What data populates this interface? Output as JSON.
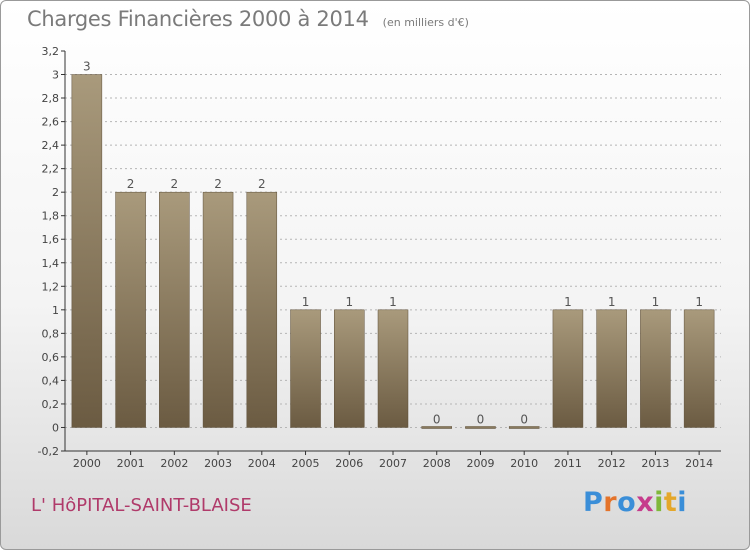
{
  "title": "Charges Financières 2000 à 2014",
  "unit": "(en milliers d'€)",
  "location": "L' HôPITAL-SAINT-BLAISE",
  "logo": {
    "letters": [
      "P",
      "r",
      "o",
      "x",
      "i",
      "t",
      "i"
    ],
    "colors": [
      "#3a8ed8",
      "#e4732a",
      "#3a8ed8",
      "#c63b8c",
      "#7fb83a",
      "#e4a72a",
      "#3a8ed8"
    ]
  },
  "colors": {
    "bar_top": "#a99a7c",
    "bar_bottom": "#6b5b42",
    "grid": "#b5b5b5",
    "axis": "#333333"
  },
  "chart_data": {
    "type": "bar",
    "title": "Charges Financières 2000 à 2014",
    "subtitle": "(en milliers d'€)",
    "xlabel": "",
    "ylabel": "",
    "categories": [
      "2000",
      "2001",
      "2002",
      "2003",
      "2004",
      "2005",
      "2006",
      "2007",
      "2008",
      "2009",
      "2010",
      "2011",
      "2012",
      "2013",
      "2014"
    ],
    "values": [
      3,
      2,
      2,
      2,
      2,
      1,
      1,
      1,
      0,
      0,
      0,
      1,
      1,
      1,
      1
    ],
    "data_labels": [
      "3",
      "2",
      "2",
      "2",
      "2",
      "1",
      "1",
      "1",
      "0",
      "0",
      "0",
      "1",
      "1",
      "1",
      "1"
    ],
    "ylim": [
      -0.2,
      3.2
    ],
    "yticks": [
      "-0,2",
      "0",
      "0,2",
      "0,4",
      "0,6",
      "0,8",
      "1",
      "1,2",
      "1,4",
      "1,6",
      "1,8",
      "2",
      "2,2",
      "2,4",
      "2,6",
      "2,8",
      "3",
      "3,2"
    ],
    "ytick_values": [
      -0.2,
      0,
      0.2,
      0.4,
      0.6,
      0.8,
      1,
      1.2,
      1.4,
      1.6,
      1.8,
      2,
      2.2,
      2.4,
      2.6,
      2.8,
      3,
      3.2
    ],
    "grid": true,
    "legend": "none"
  }
}
